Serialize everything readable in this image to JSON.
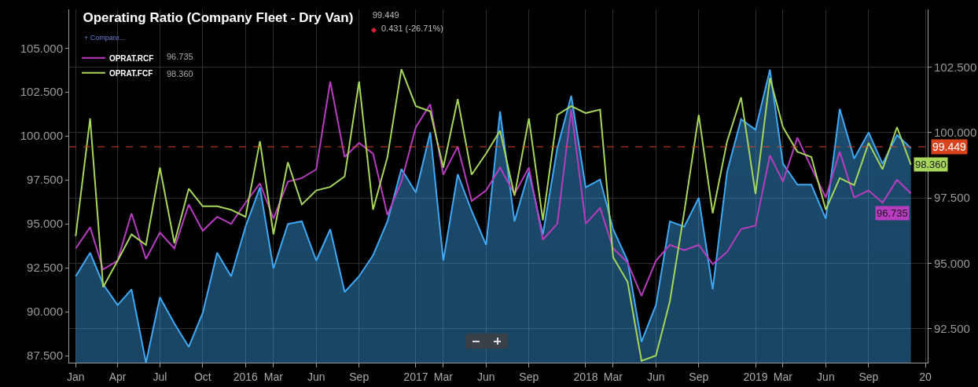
{
  "chart_data": {
    "type": "line",
    "title": "Operating Ratio (Company Fleet - Dry Van)",
    "annotations": [
      "99.449",
      "0.431 (-26.71%)",
      "+ Compare...",
      "96.735",
      "98.360"
    ],
    "x": [
      "2015-01",
      "2015-02",
      "2015-03",
      "2015-04",
      "2015-05",
      "2015-06",
      "2015-07",
      "2015-08",
      "2015-09",
      "2015-10",
      "2015-11",
      "2015-12",
      "2016-01",
      "2016-02",
      "2016-03",
      "2016-04",
      "2016-05",
      "2016-06",
      "2016-07",
      "2016-08",
      "2016-09",
      "2016-10",
      "2016-11",
      "2016-12",
      "2017-01",
      "2017-02",
      "2017-03",
      "2017-04",
      "2017-05",
      "2017-06",
      "2017-07",
      "2017-08",
      "2017-09",
      "2017-10",
      "2017-11",
      "2017-12",
      "2018-01",
      "2018-02",
      "2018-03",
      "2018-04",
      "2018-05",
      "2018-06",
      "2018-07",
      "2018-08",
      "2018-09",
      "2018-10",
      "2018-11",
      "2018-12",
      "2019-01",
      "2019-02",
      "2019-03",
      "2019-04",
      "2019-05",
      "2019-06",
      "2019-07",
      "2019-08",
      "2019-09",
      "2019-10",
      "2019-11",
      "2019-12"
    ],
    "series": [
      {
        "type": "area",
        "axis": "y2",
        "color": "#3fa9f5",
        "values": [
          94.5,
          95.4,
          94.2,
          93.4,
          94.0,
          91.2,
          93.7,
          92.7,
          91.8,
          93.1,
          95.4,
          94.5,
          96.4,
          97.9,
          94.8,
          96.5,
          96.6,
          95.1,
          96.3,
          93.9,
          94.5,
          95.3,
          96.6,
          98.6,
          97.7,
          100.0,
          95.1,
          98.4,
          97.0,
          95.7,
          100.8,
          96.6,
          98.5,
          96.1,
          99.4,
          101.4,
          97.9,
          98.2,
          96.3,
          95.1,
          92.0,
          93.4,
          96.6,
          96.4,
          97.5,
          94.0,
          98.5,
          100.5,
          100.1,
          102.4,
          98.8,
          98.0,
          98.0,
          96.7,
          100.9,
          99.0,
          100.0,
          98.8,
          99.9,
          99.4
        ]
      },
      {
        "name": "OPRAT.RCF",
        "color": "#b83cc0",
        "values": [
          93.6,
          94.8,
          92.4,
          92.9,
          95.6,
          93.0,
          94.5,
          93.6,
          96.1,
          94.6,
          95.4,
          95.0,
          96.2,
          97.3,
          95.3,
          97.4,
          97.6,
          98.1,
          103.1,
          98.8,
          99.6,
          99.0,
          95.5,
          97.4,
          100.5,
          101.8,
          97.8,
          99.4,
          96.3,
          96.9,
          98.2,
          96.7,
          98.2,
          94.1,
          95.0,
          101.5,
          95.0,
          95.9,
          93.6,
          92.8,
          90.9,
          92.9,
          93.8,
          93.5,
          93.8,
          92.7,
          93.4,
          94.7,
          94.9,
          98.9,
          97.4,
          99.9,
          98.2,
          96.5,
          99.1,
          96.5,
          96.9,
          96.2,
          97.5,
          96.735
        ],
        "value_labels": [
          null,
          null,
          null,
          null,
          null,
          null,
          null,
          null,
          null,
          null,
          null,
          null,
          null,
          null,
          null,
          null,
          null,
          null,
          null,
          null,
          null,
          null,
          null,
          null,
          null,
          null,
          null,
          null,
          null,
          null,
          null,
          null,
          null,
          null,
          null,
          null,
          null,
          null,
          null,
          null,
          null,
          null,
          null,
          null,
          null,
          null,
          null,
          null,
          null,
          null,
          null,
          null,
          null,
          null,
          null,
          null,
          null,
          null,
          null,
          "96.735"
        ]
      },
      {
        "name": "OPRAT.FCF",
        "color": "#a8d65a",
        "values": [
          94.3,
          101.0,
          91.4,
          92.9,
          94.4,
          93.8,
          98.2,
          93.9,
          97.0,
          96.0,
          96.0,
          95.8,
          95.4,
          99.7,
          94.4,
          98.5,
          96.1,
          96.9,
          97.1,
          97.7,
          103.1,
          95.8,
          98.8,
          103.8,
          101.7,
          101.4,
          98.2,
          102.1,
          97.8,
          99.0,
          100.3,
          96.6,
          101.0,
          95.2,
          101.2,
          101.7,
          101.3,
          101.5,
          93.1,
          91.7,
          87.2,
          87.5,
          90.6,
          95.7,
          101.2,
          95.6,
          99.7,
          102.2,
          96.7,
          103.3,
          100.5,
          99.1,
          98.8,
          95.8,
          97.6,
          97.2,
          99.6,
          98.1,
          100.5,
          98.36
        ],
        "value_labels": [
          null,
          null,
          null,
          null,
          null,
          null,
          null,
          null,
          null,
          null,
          null,
          null,
          null,
          null,
          null,
          null,
          null,
          null,
          null,
          null,
          null,
          null,
          null,
          null,
          null,
          null,
          null,
          null,
          null,
          null,
          null,
          null,
          null,
          null,
          null,
          null,
          null,
          null,
          null,
          null,
          null,
          null,
          null,
          null,
          null,
          null,
          null,
          null,
          null,
          null,
          null,
          null,
          null,
          null,
          null,
          null,
          null,
          null,
          null,
          "98.360"
        ]
      }
    ],
    "xlim": [
      "2014-12-18",
      "2020-01-06"
    ],
    "xticks": [
      {
        "value": "2015-01-01",
        "label": "Jan"
      },
      {
        "value": "2015-04-01",
        "label": "Apr"
      },
      {
        "value": "2015-07-01",
        "label": "Jul"
      },
      {
        "value": "2015-10-01",
        "label": "Oct"
      },
      {
        "value": "2016-01-01",
        "label": "2016"
      },
      {
        "value": "2016-03-01",
        "label": "Mar"
      },
      {
        "value": "2016-06-01",
        "label": "Jun"
      },
      {
        "value": "2016-09-01",
        "label": "Sep"
      },
      {
        "value": "2017-01-01",
        "label": "2017"
      },
      {
        "value": "2017-03-01",
        "label": "Mar"
      },
      {
        "value": "2017-06-01",
        "label": "Jun"
      },
      {
        "value": "2017-09-01",
        "label": "Sep"
      },
      {
        "value": "2018-01-01",
        "label": "2018"
      },
      {
        "value": "2018-03-01",
        "label": "Mar"
      },
      {
        "value": "2018-06-01",
        "label": "Jun"
      },
      {
        "value": "2018-09-01",
        "label": "Sep"
      },
      {
        "value": "2019-01-01",
        "label": "2019"
      },
      {
        "value": "2019-03-01",
        "label": "Mar"
      },
      {
        "value": "2019-06-01",
        "label": "Jun"
      },
      {
        "value": "2019-09-01",
        "label": "Sep"
      },
      {
        "value": "2020-01-01",
        "label": "20"
      }
    ],
    "ylim": [
      87.1,
      107.2
    ],
    "yticks": [
      {
        "value": 87.5,
        "label": "87.500"
      },
      {
        "value": 90,
        "label": "90.000"
      },
      {
        "value": 92.5,
        "label": "92.500"
      },
      {
        "value": 95,
        "label": "95.000"
      },
      {
        "value": 97.5,
        "label": "97.500"
      },
      {
        "value": 100,
        "label": "100.000"
      },
      {
        "value": 102.5,
        "label": "102.500"
      },
      {
        "value": 105,
        "label": "105.000"
      }
    ],
    "y2lim": [
      91.2,
      104.7
    ],
    "y2ticks": [
      {
        "value": 92.5,
        "label": "92.500"
      },
      {
        "value": 95,
        "label": "95.000"
      },
      {
        "value": 97.5,
        "label": "97.500"
      },
      {
        "value": 100,
        "label": "100.000"
      },
      {
        "value": 102.5,
        "label": "102.500"
      }
    ],
    "ref_lines": [
      {
        "axis": "y2",
        "value": 99.449,
        "label": "99.449",
        "color": "#d9431e",
        "line_style": "dashed"
      }
    ],
    "grid": true,
    "legend": "top left",
    "marker": "none",
    "line_style": "solid"
  }
}
